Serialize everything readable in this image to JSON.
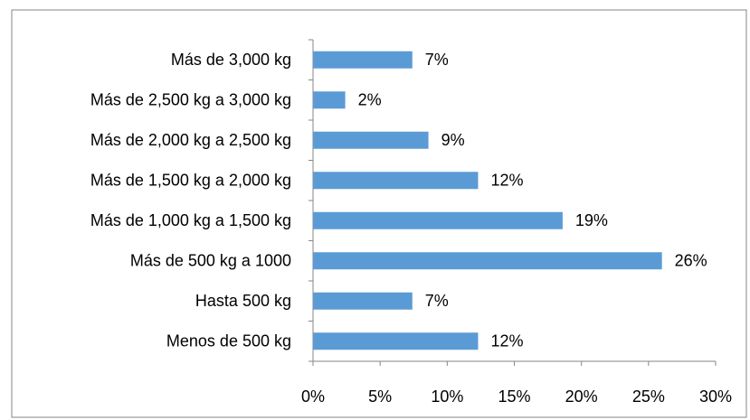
{
  "chart_data": {
    "type": "bar",
    "orientation": "horizontal",
    "categories": [
      "Más de 3,000 kg",
      "Más de 2,500 kg a 3,000 kg",
      "Más de 2,000 kg a 2,500 kg",
      "Más de 1,500 kg a 2,000 kg",
      "Más de 1,000 kg a 1,500 kg",
      "Más de 500 kg a 1000",
      "Hasta 500 kg",
      "Menos de 500 kg"
    ],
    "values": [
      7.4,
      2.4,
      8.6,
      12.3,
      18.6,
      26,
      7.4,
      12.3
    ],
    "value_labels": [
      "7%",
      "2%",
      "9%",
      "12%",
      "19%",
      "26%",
      "7%",
      "12%"
    ],
    "color": "#5b9bd5",
    "xlim": [
      0,
      30
    ],
    "xticks": [
      {
        "value": 0,
        "label": "0%"
      },
      {
        "value": 5,
        "label": "5%"
      },
      {
        "value": 10,
        "label": "10%"
      },
      {
        "value": 15,
        "label": "15%"
      },
      {
        "value": 20,
        "label": "20%"
      },
      {
        "value": 25,
        "label": "25%"
      },
      {
        "value": 30,
        "label": "30%"
      }
    ],
    "grid": false
  }
}
